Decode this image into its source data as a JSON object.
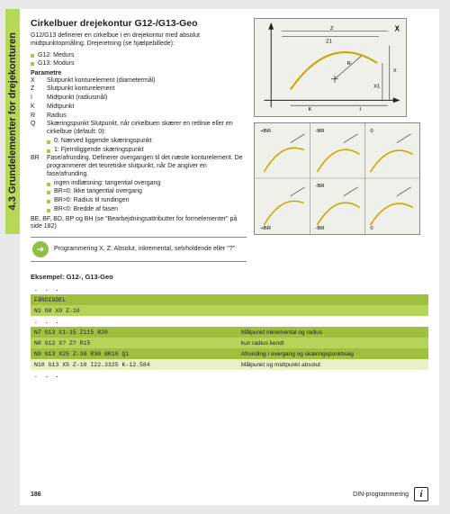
{
  "sideTab": "4.3 Grundelementer for drejekonturen",
  "title": "Cirkelbuer drejekontur G12-/G13-Geo",
  "intro": "G12/G13 definerer en cirkelbue i en drejekontur med absolut midtpunktopmåling. Drejeretning (se hjælpebillede):",
  "introBullets": [
    "G12: Medurs",
    "G13: Modurs"
  ],
  "paramHead": "Parametre",
  "params": [
    {
      "k": "X",
      "v": "Slutpunkt konturelement (diametermål)"
    },
    {
      "k": "Z",
      "v": "Slutpunkt konturelement"
    },
    {
      "k": "I",
      "v": "Midtpunkt (radiusmål)"
    },
    {
      "k": "K",
      "v": "Midtpunkt"
    },
    {
      "k": "R",
      "v": "Radius"
    },
    {
      "k": "Q",
      "v": "Skæringspunkt Slutpunkt, når cirkelbuen skærer en retlinie eller en cirkelbue (default: 0):"
    }
  ],
  "qSub": [
    "0: Nærved liggende skæringspunkt",
    "1: Fjerntliggende skæringspunkt"
  ],
  "brParam": {
    "k": "BR",
    "v": "Fase/afrunding. Definerer overgangen til det næste konturelement. De programmerer det teoretiske slutpunkt, når De angiver en fase/afrunding."
  },
  "brSub": [
    "ingen indlæsning: tangential overgang",
    "BR=0: Ikke tangential overgang",
    "BR>0: Radius til rundingen",
    "BR<0: Bredde af fasen"
  ],
  "seeNote": "BE, BF, BD, BP og BH (se \"Bearbejdningsattributter for formelementer\" på side 182)",
  "noteText": "Programmering X, Z: Absolut, inkremental, selvholdende eller \"?\"",
  "exampleHead": "Eksempel: G12-, G13-Geo",
  "rows": [
    {
      "cls": "",
      "code": ". . .",
      "desc": "",
      "dots": true
    },
    {
      "cls": "r-dark",
      "code": "FÆRDIGDEL",
      "desc": ""
    },
    {
      "cls": "r-mid",
      "code": "N1 G0 X0 Z-10",
      "desc": ""
    },
    {
      "cls": "",
      "code": ". . .",
      "desc": "",
      "dots": true
    },
    {
      "cls": "r-dark",
      "code": "N7 G13 X1-15 Z115 R20",
      "desc": "Målpunkt inkremental og radius"
    },
    {
      "cls": "r-mid",
      "code": "N8 G12 X? Z? R15",
      "desc": "kun radius kendt"
    },
    {
      "cls": "r-dark",
      "code": "N9 G13 X25 Z-30 R30 BR10 Q1",
      "desc": "Afrunding i overgang og skæringspunktvalg"
    },
    {
      "cls": "r-pale",
      "code": "N10 G13 X5 Z-10 I22.3325 K-12.584",
      "desc": "Målpunkt og midtpunkt absolut"
    },
    {
      "cls": "",
      "code": ". . .",
      "desc": "",
      "dots": true
    }
  ],
  "diagram1": {
    "bg": "#f0f0ea",
    "stroke": "#222",
    "arc": "#c8a800",
    "labels": {
      "X": "X",
      "Z": "Z",
      "I": "I",
      "K": "K",
      "R": "R",
      "X1": "X1",
      "Z1": "Z1"
    }
  },
  "diagram2": {
    "bg": "#f0f0ea",
    "stroke": "#222",
    "arc": "#c8a800",
    "cells": [
      "+BR",
      "-BR",
      "0",
      "",
      "-BR",
      "+BR",
      "-BR",
      "0"
    ]
  },
  "footer": {
    "page": "186",
    "section": "DIN-programmering"
  }
}
